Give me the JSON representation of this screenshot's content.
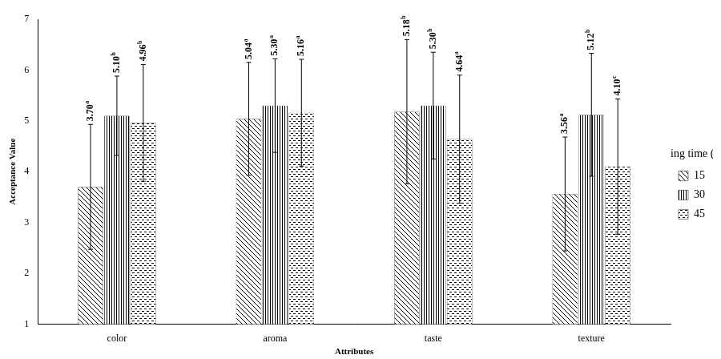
{
  "chart_data": {
    "type": "bar",
    "categories": [
      "color",
      "aroma",
      "taste",
      "texture"
    ],
    "x_label": "Attributes",
    "y_label": "Acceptance Value",
    "ylim": [
      1,
      7
    ],
    "yticks": [
      1,
      2,
      3,
      4,
      5,
      6,
      7
    ],
    "grid": false,
    "legend": "right",
    "legend_title": "Roasting time (min):",
    "data_labels": true,
    "series": [
      {
        "name": "15",
        "color": "#000000",
        "values": [
          3.7,
          5.04,
          5.18,
          3.56
        ],
        "value_labels": [
          "3.70a",
          "5.04a",
          "5.18b",
          "3.56a"
        ],
        "error": [
          1.23,
          1.11,
          1.42,
          1.12
        ]
      },
      {
        "name": "30",
        "color": "#000000",
        "values": [
          5.1,
          5.3,
          5.3,
          5.12
        ],
        "value_labels": [
          "5.10b",
          "5.30a",
          "5.30b",
          "5.12b"
        ],
        "error": [
          0.78,
          0.92,
          1.05,
          1.21
        ]
      },
      {
        "name": "45",
        "color": "#000000",
        "values": [
          4.96,
          5.16,
          4.64,
          4.1
        ],
        "value_labels": [
          "4.96b",
          "5.16a",
          "4.64a",
          "4.10c"
        ],
        "error": [
          1.15,
          1.05,
          1.26,
          1.33
        ]
      }
    ]
  }
}
